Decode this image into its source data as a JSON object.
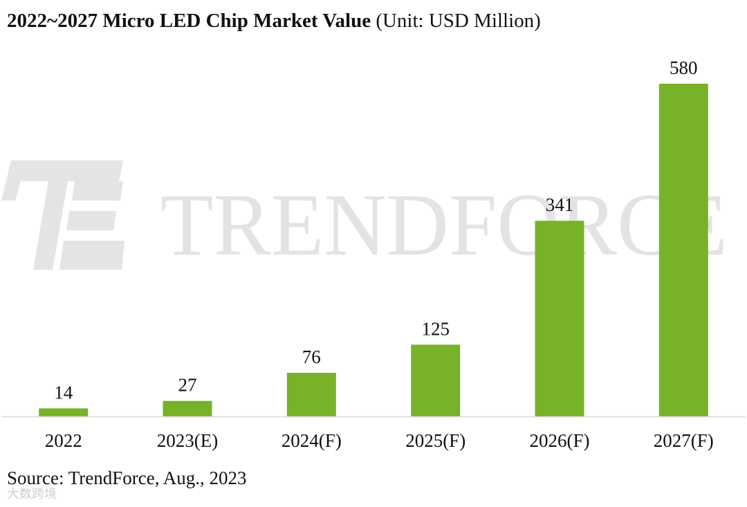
{
  "chart_data": {
    "type": "bar",
    "title": "2022~2027 Micro LED Chip Market Value",
    "unit_label": "(Unit: USD Million)",
    "categories": [
      "2022",
      "2023(E)",
      "2024(F)",
      "2025(F)",
      "2026(F)",
      "2027(F)"
    ],
    "values": [
      14,
      27,
      76,
      125,
      341,
      580
    ],
    "ylim": [
      0,
      600
    ],
    "xlabel": "",
    "ylabel": "",
    "grid": false,
    "bar_color": "#77b228"
  },
  "source": "Source: TrendForce, Aug., 2023",
  "watermark": {
    "brand_text": "TRENDFORCE",
    "logo_glyph": "TF",
    "cn_text": "大数跨境",
    "color": "#e3e3e3"
  },
  "colors": {
    "axis": "#d9d9d9",
    "text": "#111111"
  }
}
